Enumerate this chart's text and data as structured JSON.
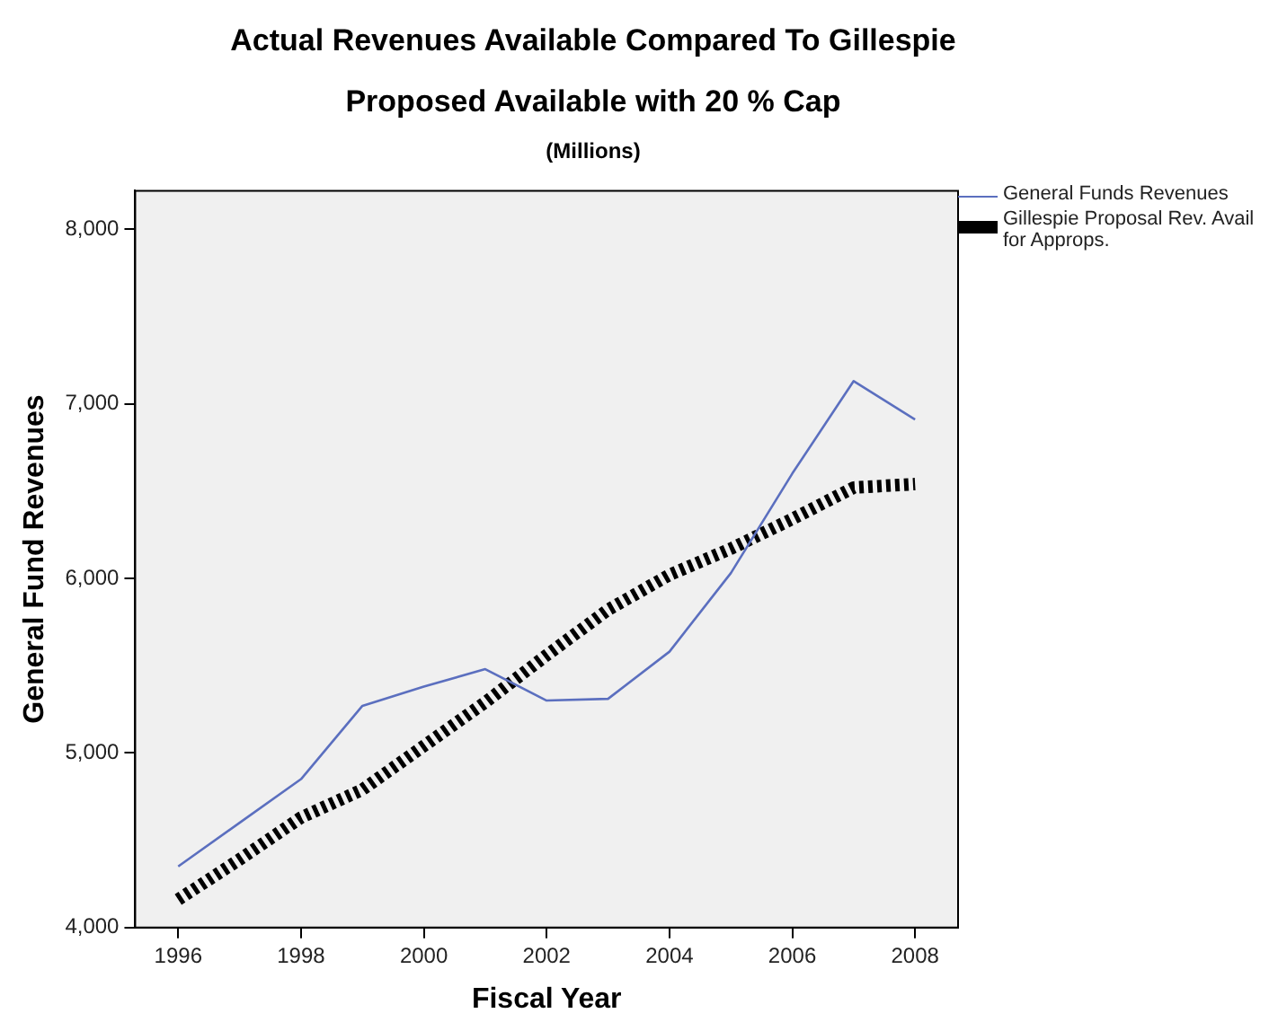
{
  "chart_data": {
    "type": "line",
    "title": "Actual Revenues Available Compared To Gillespie Proposed Available with 20 % Cap",
    "subtitle": "(Millions)",
    "xlabel": "Fiscal Year",
    "ylabel": "General Fund Revenues",
    "x": [
      1996,
      1997,
      1998,
      1999,
      2000,
      2001,
      2002,
      2003,
      2004,
      2005,
      2006,
      2007,
      2008
    ],
    "series": [
      {
        "name": "General Funds Revenues",
        "color": "#5b6fbf",
        "line_style": "solid",
        "values": [
          4350,
          4600,
          4850,
          5270,
          5380,
          5480,
          5300,
          5310,
          5580,
          6030,
          6600,
          7130,
          6910
        ]
      },
      {
        "name": "Gillespie Proposal Rev. Avail for Approps.",
        "color": "#000000",
        "line_style": "dotted",
        "values": [
          4160,
          4390,
          4630,
          4790,
          5040,
          5290,
          5560,
          5820,
          6020,
          6170,
          6340,
          6520,
          6540
        ]
      }
    ],
    "xlim": [
      1995.3,
      2008.7
    ],
    "xticks": [
      1996,
      1998,
      2000,
      2002,
      2004,
      2006,
      2008
    ],
    "ylim": [
      4000,
      8220
    ],
    "yticks": [
      {
        "value": 4000,
        "label": "4,000"
      },
      {
        "value": 5000,
        "label": "5,000"
      },
      {
        "value": 6000,
        "label": "6,000"
      },
      {
        "value": 7000,
        "label": "7,000"
      },
      {
        "value": 8000,
        "label": "8,000"
      }
    ],
    "grid": false,
    "legend": "right",
    "marker": "none"
  }
}
